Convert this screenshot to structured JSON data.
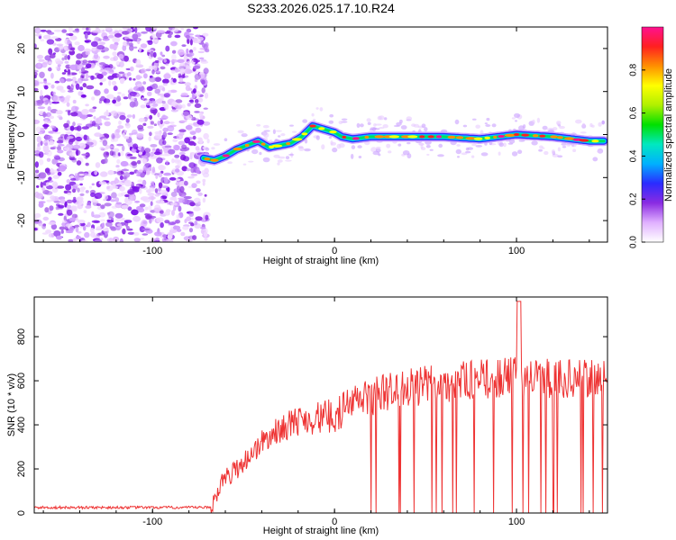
{
  "title": "S233.2026.025.17.10.R24",
  "chart_data": [
    {
      "type": "heatmap",
      "xlabel": "Height of straight line (km)",
      "ylabel": "Frequency (Hz)",
      "xlim": [
        -165,
        150
      ],
      "ylim": [
        -25,
        25
      ],
      "xticks": [
        -100,
        0,
        100
      ],
      "yticks": [
        -20,
        -10,
        0,
        10,
        20
      ],
      "noise_region_x": [
        -165,
        -70
      ],
      "ridge": {
        "x": [
          -72,
          -66,
          -60,
          -54,
          -48,
          -42,
          -36,
          -30,
          -24,
          -18,
          -12,
          -8,
          -4,
          0,
          4,
          10,
          20,
          40,
          60,
          80,
          100,
          120,
          140,
          148
        ],
        "y": [
          -5.5,
          -6,
          -5,
          -3.5,
          -2.5,
          -1.5,
          -3,
          -2.5,
          -2,
          -0.5,
          2,
          1.5,
          1,
          0.5,
          -0.5,
          -1,
          -0.5,
          -0.5,
          -0.5,
          -1,
          0,
          -0.5,
          -1.5,
          -1.5
        ]
      },
      "colorbar": {
        "label": "Normalized spectral amplitude",
        "range": [
          0,
          1
        ],
        "ticks": [
          "0.0",
          "0.2",
          "0.4",
          "0.6",
          "0.8"
        ],
        "colors": [
          "#ffffff",
          "#e0b0ff",
          "#8a2be2",
          "#2b2bff",
          "#00b0ff",
          "#00e8c0",
          "#00e000",
          "#b0f000",
          "#ffff00",
          "#ff9000",
          "#ff2020",
          "#ff1090"
        ]
      }
    },
    {
      "type": "line",
      "xlabel": "Height of straight line (km)",
      "ylabel": "SNR (10 * v/v)",
      "xlim": [
        -165,
        150
      ],
      "ylim": [
        0,
        980
      ],
      "xticks": [
        -100,
        0,
        100
      ],
      "yticks": [
        0,
        200,
        400,
        600,
        800
      ],
      "color": "#ee3333",
      "profile": {
        "x": [
          -165,
          -68,
          -62,
          -50,
          -40,
          -30,
          -20,
          -10,
          0,
          10,
          20,
          30,
          50,
          70,
          90,
          100,
          110,
          130,
          150
        ],
        "y": [
          25,
          25,
          140,
          230,
          320,
          380,
          420,
          430,
          440,
          500,
          530,
          550,
          580,
          600,
          610,
          620,
          610,
          610,
          600
        ]
      }
    }
  ]
}
